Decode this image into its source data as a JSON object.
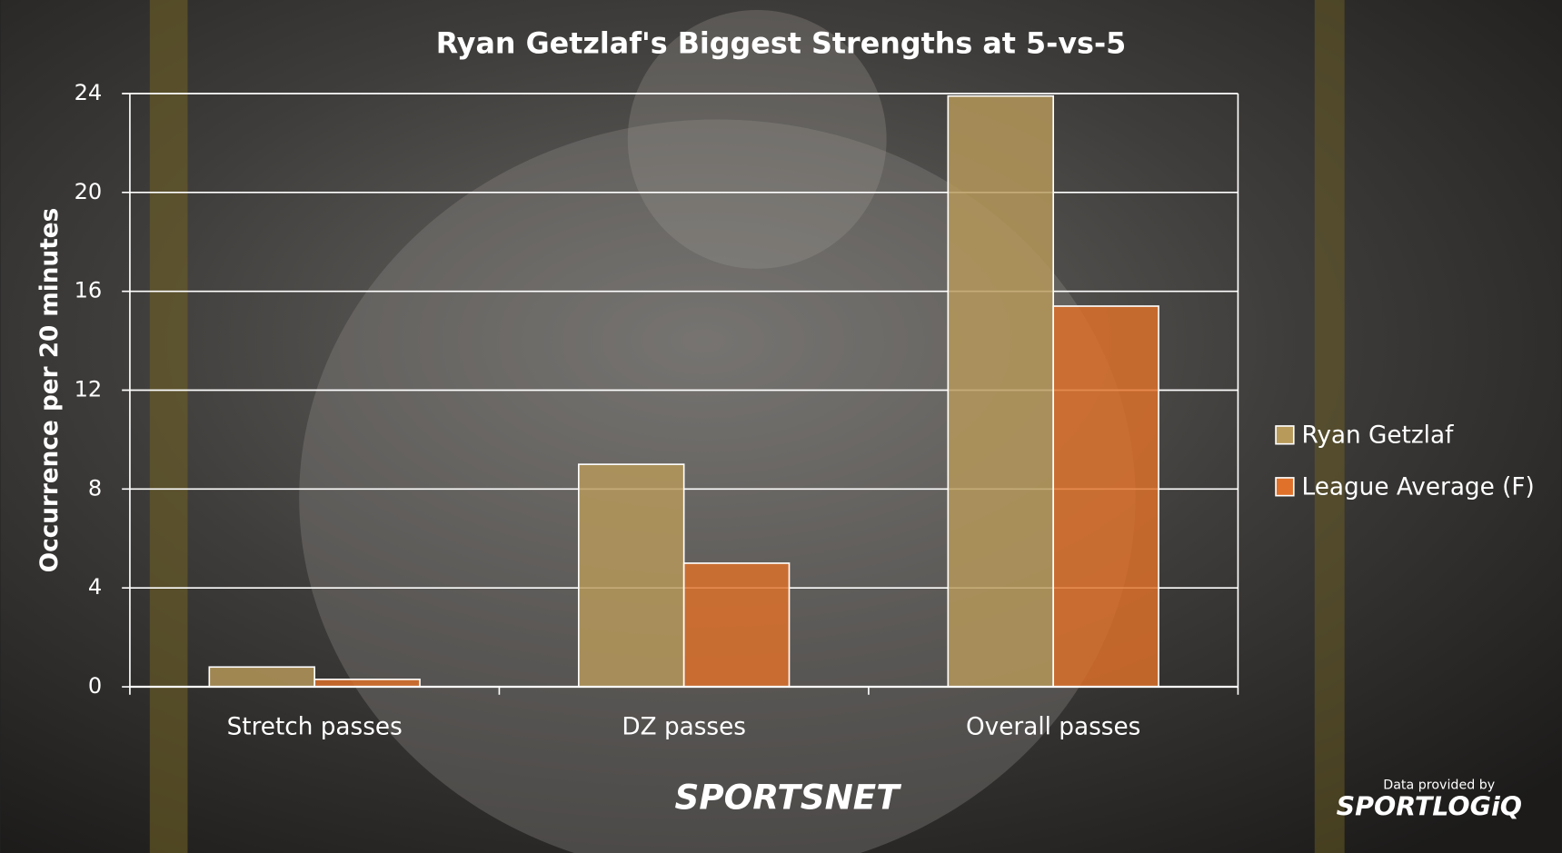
{
  "chart_data": {
    "type": "bar",
    "title": "Ryan Getzlaf's Biggest Strengths at 5-vs-5",
    "y_label": "Occurrence per 20 minutes",
    "categories": [
      "Stretch passes",
      "DZ passes",
      "Overall passes"
    ],
    "series": [
      {
        "name": "Ryan Getzlaf",
        "color": "#b89a5a",
        "values": [
          0.8,
          9.0,
          23.9
        ]
      },
      {
        "name": "League Average (F)",
        "color": "#e0712a",
        "values": [
          0.3,
          5.0,
          15.4
        ]
      }
    ],
    "ylim": [
      0,
      24
    ],
    "yticks": [
      0,
      4,
      8,
      12,
      16,
      20,
      24
    ],
    "grid": true,
    "legend": "right"
  },
  "branding": {
    "logo": "SPORTSNET",
    "credit": "Data provided by",
    "provider": "SPORTLOGiQ"
  }
}
